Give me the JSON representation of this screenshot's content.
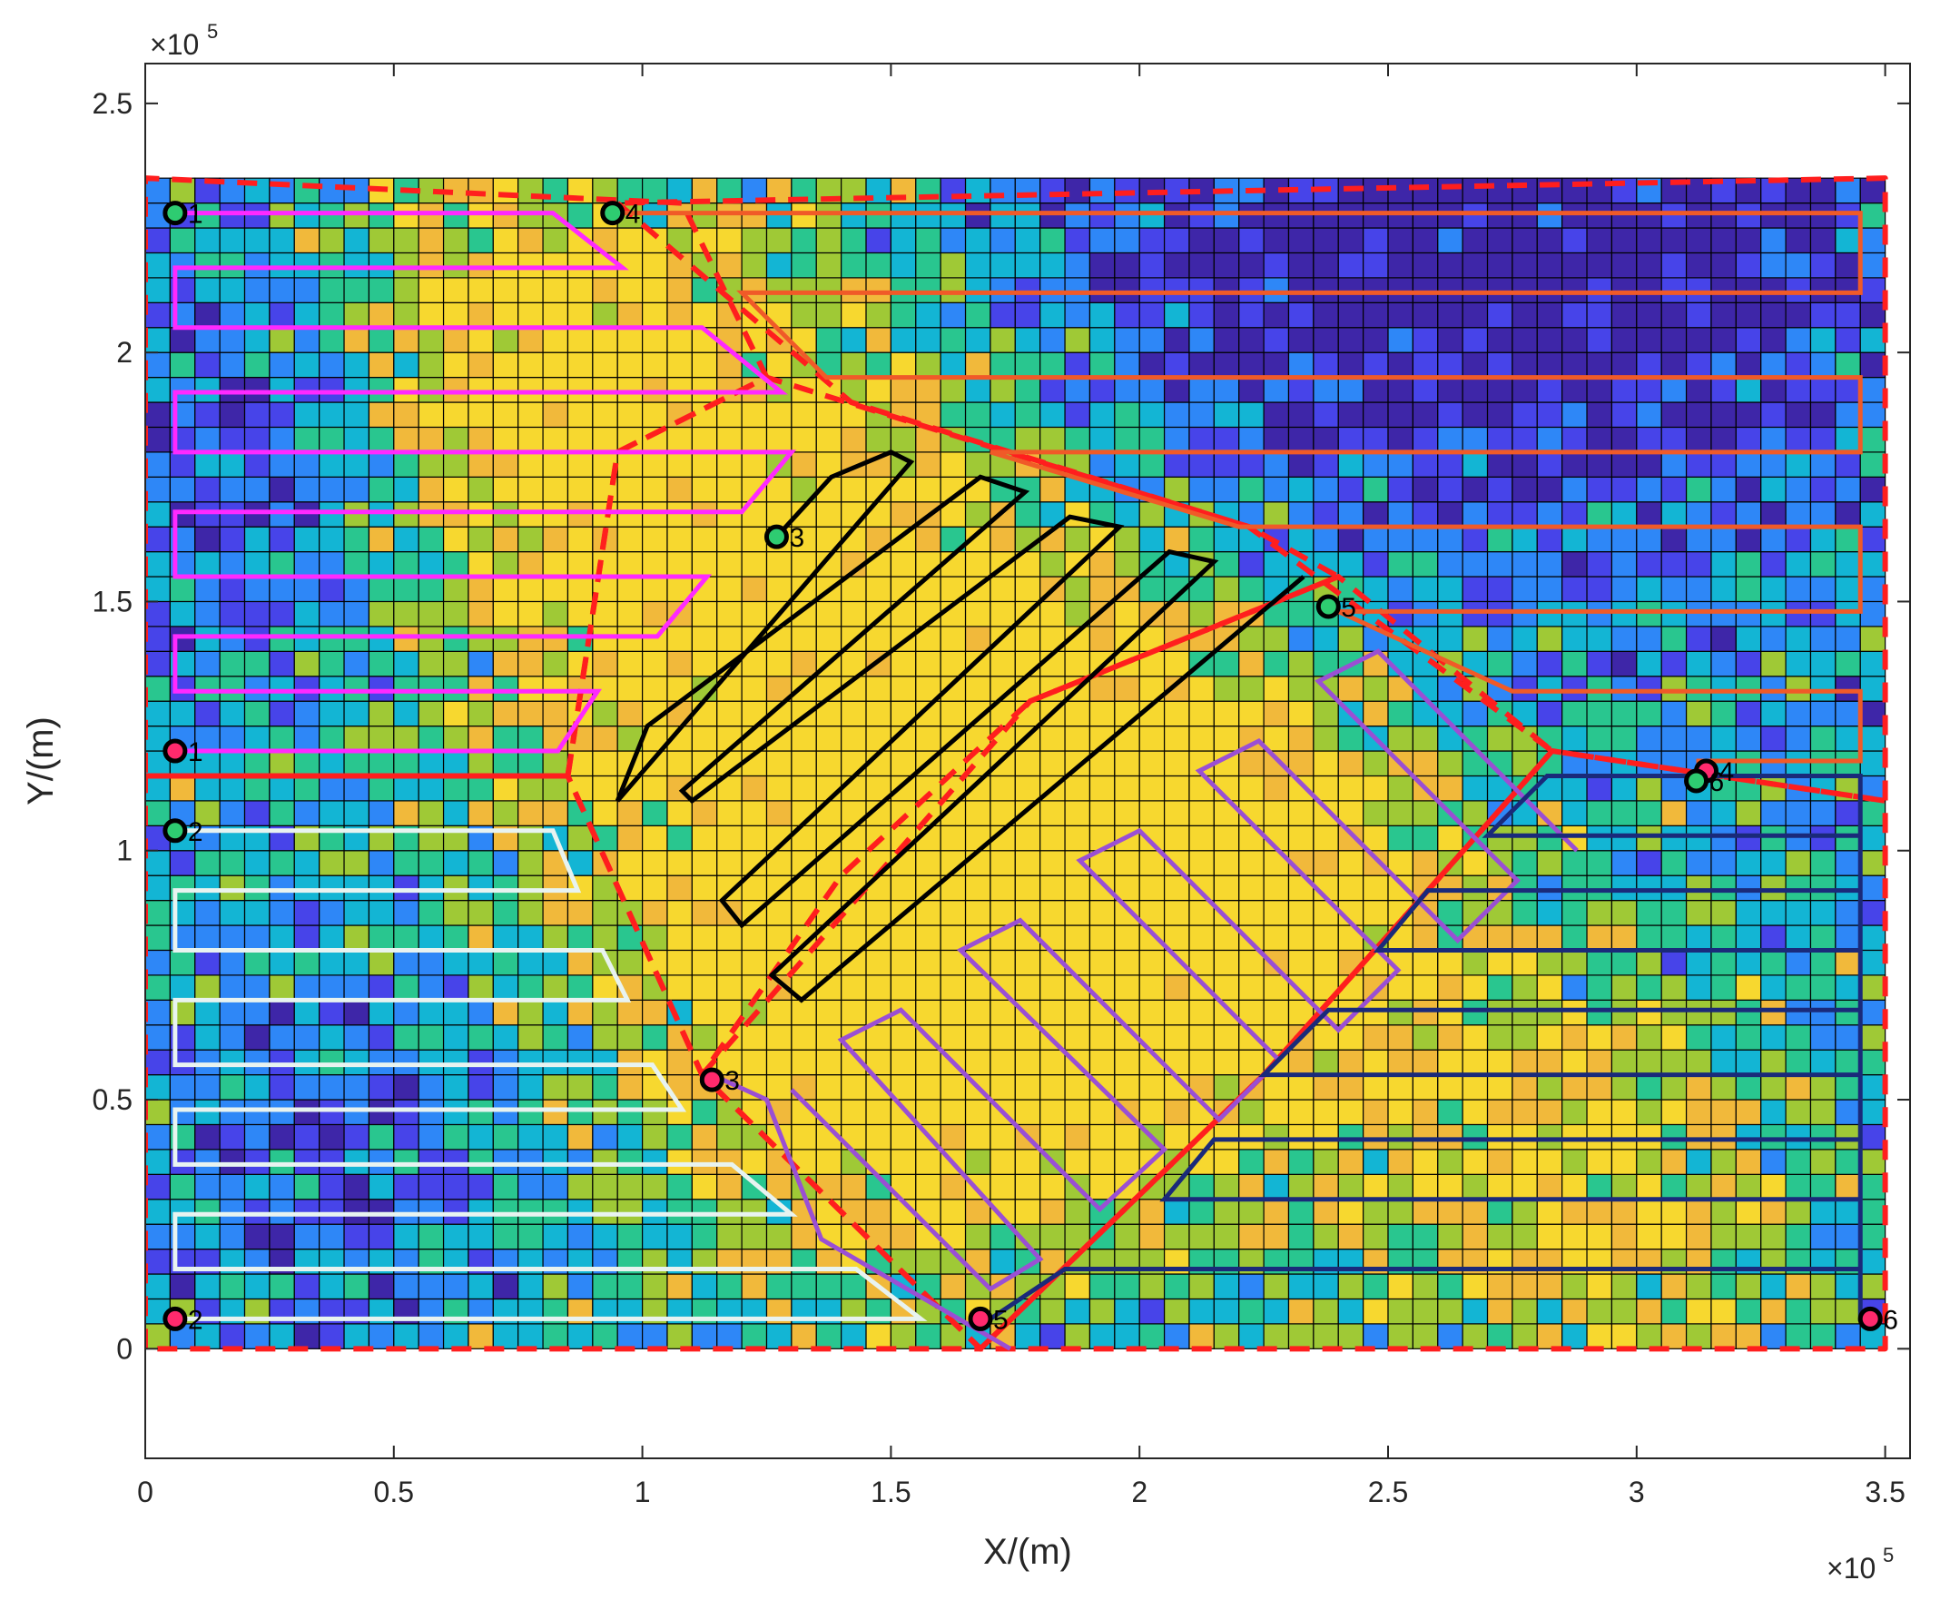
{
  "chart_data": {
    "type": "heatmap",
    "title": "",
    "xlabel": "X/(m)",
    "ylabel": "Y/(m)",
    "x_multiplier": "×10",
    "x_multiplier_exp": "5",
    "y_multiplier": "×10",
    "y_multiplier_exp": "5",
    "xlim": [
      0,
      355000
    ],
    "ylim": [
      -22000,
      258000
    ],
    "x_ticks": [
      0,
      50000,
      100000,
      150000,
      200000,
      250000,
      300000,
      350000
    ],
    "y_ticks": [
      0,
      50000,
      100000,
      150000,
      200000,
      250000
    ],
    "x_tick_labels": [
      "0",
      "0.5",
      "1",
      "1.5",
      "2",
      "2.5",
      "3",
      "3.5"
    ],
    "y_tick_labels": [
      "0",
      "0.5",
      "1",
      "1.5",
      "2",
      "2.5"
    ],
    "grid": {
      "x_range": [
        0,
        350000
      ],
      "y_range": [
        0,
        235000
      ],
      "cell_size": 5000,
      "colormap": [
        "#3e26a8",
        "#4744e9",
        "#2e87f7",
        "#13b5d4",
        "#29c68f",
        "#9fc936",
        "#f1b93b",
        "#f7d82f"
      ]
    },
    "regions_boundary_color": "#ff1e1e",
    "regions": [
      {
        "vertices": [
          [
            0,
            115000
          ],
          [
            85000,
            115000
          ],
          [
            95000,
            180000
          ],
          [
            125000,
            195000
          ],
          [
            108000,
            230000
          ],
          [
            0,
            235000
          ]
        ]
      },
      {
        "vertices": [
          [
            95000,
            230000
          ],
          [
            142000,
            190000
          ],
          [
            222000,
            165000
          ],
          [
            283000,
            120000
          ],
          [
            350000,
            110000
          ],
          [
            350000,
            235000
          ]
        ]
      },
      {
        "vertices": [
          [
            85000,
            115000
          ],
          [
            95000,
            180000
          ],
          [
            125000,
            195000
          ],
          [
            222000,
            165000
          ],
          [
            240000,
            155000
          ],
          [
            178000,
            130000
          ],
          [
            140000,
            95000
          ],
          [
            112000,
            55000
          ]
        ]
      },
      {
        "vertices": [
          [
            112000,
            55000
          ],
          [
            178000,
            130000
          ],
          [
            240000,
            155000
          ],
          [
            283000,
            120000
          ],
          [
            225000,
            55000
          ],
          [
            168000,
            0
          ]
        ]
      },
      {
        "vertices": [
          [
            0,
            0
          ],
          [
            0,
            115000
          ],
          [
            85000,
            115000
          ],
          [
            112000,
            55000
          ],
          [
            168000,
            0
          ]
        ]
      },
      {
        "vertices": [
          [
            168000,
            0
          ],
          [
            225000,
            55000
          ],
          [
            283000,
            120000
          ],
          [
            350000,
            110000
          ],
          [
            350000,
            0
          ]
        ]
      }
    ],
    "paths": [
      {
        "color": "#ff29ff",
        "points": [
          [
            6000,
            228000
          ],
          [
            82000,
            228000
          ],
          [
            96000,
            217000
          ],
          [
            6000,
            217000
          ],
          [
            6000,
            205000
          ],
          [
            112000,
            205000
          ],
          [
            128000,
            192000
          ],
          [
            6000,
            192000
          ],
          [
            6000,
            180000
          ],
          [
            130000,
            180000
          ],
          [
            120000,
            168000
          ],
          [
            6000,
            168000
          ],
          [
            6000,
            155000
          ],
          [
            113000,
            155000
          ],
          [
            103000,
            143000
          ],
          [
            6000,
            143000
          ],
          [
            6000,
            132000
          ],
          [
            91000,
            132000
          ],
          [
            83000,
            120000
          ],
          [
            6000,
            120000
          ]
        ]
      },
      {
        "color": "#f05a28",
        "points": [
          [
            94000,
            228000
          ],
          [
            345000,
            228000
          ],
          [
            345000,
            212000
          ],
          [
            120000,
            212000
          ],
          [
            137000,
            195000
          ],
          [
            345000,
            195000
          ],
          [
            345000,
            180000
          ],
          [
            170000,
            180000
          ],
          [
            220000,
            165000
          ],
          [
            345000,
            165000
          ],
          [
            345000,
            148000
          ],
          [
            240000,
            148000
          ],
          [
            275000,
            132000
          ],
          [
            345000,
            132000
          ],
          [
            345000,
            118000
          ],
          [
            312000,
            118000
          ]
        ]
      },
      {
        "color": "#000000",
        "points": [
          [
            127000,
            163000
          ],
          [
            138000,
            175000
          ],
          [
            150000,
            180000
          ],
          [
            154000,
            178000
          ],
          [
            95000,
            110000
          ],
          [
            101000,
            125000
          ],
          [
            168000,
            175000
          ],
          [
            177000,
            172000
          ],
          [
            108000,
            112000
          ],
          [
            110000,
            110000
          ],
          [
            186000,
            167000
          ],
          [
            196000,
            165000
          ],
          [
            116000,
            90000
          ],
          [
            120000,
            85000
          ],
          [
            206000,
            160000
          ],
          [
            215000,
            158000
          ],
          [
            126000,
            75000
          ],
          [
            132000,
            70000
          ],
          [
            233000,
            155000
          ]
        ]
      },
      {
        "color": "#9a4fd4",
        "points": [
          [
            114000,
            55000
          ],
          [
            125000,
            50000
          ],
          [
            136000,
            22000
          ],
          [
            174000,
            0
          ]
        ]
      },
      {
        "color": "#9a4fd4",
        "points": [
          [
            130000,
            52000
          ],
          [
            170000,
            12000
          ],
          [
            180000,
            18000
          ],
          [
            140000,
            62000
          ],
          [
            152000,
            68000
          ],
          [
            192000,
            28000
          ],
          [
            205000,
            40000
          ],
          [
            164000,
            80000
          ],
          [
            176000,
            86000
          ],
          [
            216000,
            46000
          ],
          [
            228000,
            58000
          ],
          [
            188000,
            98000
          ],
          [
            200000,
            104000
          ],
          [
            240000,
            64000
          ],
          [
            252000,
            76000
          ],
          [
            212000,
            116000
          ],
          [
            224000,
            122000
          ],
          [
            264000,
            82000
          ],
          [
            276000,
            94000
          ],
          [
            236000,
            134000
          ],
          [
            248000,
            140000
          ],
          [
            288000,
            100000
          ]
        ]
      },
      {
        "color": "#e8f3f0",
        "points": [
          [
            6000,
            104000
          ],
          [
            82000,
            104000
          ],
          [
            87000,
            92000
          ],
          [
            6000,
            92000
          ],
          [
            6000,
            80000
          ],
          [
            92000,
            80000
          ],
          [
            97000,
            70000
          ],
          [
            6000,
            70000
          ],
          [
            6000,
            57000
          ],
          [
            102000,
            57000
          ],
          [
            108000,
            48000
          ],
          [
            6000,
            48000
          ],
          [
            6000,
            37000
          ],
          [
            118000,
            37000
          ],
          [
            130000,
            27000
          ],
          [
            6000,
            27000
          ],
          [
            6000,
            16000
          ],
          [
            143000,
            16000
          ],
          [
            156000,
            6000
          ],
          [
            6000,
            6000
          ]
        ]
      },
      {
        "color": "#1a2a7a",
        "points": [
          [
            170000,
            6000
          ],
          [
            185000,
            16000
          ],
          [
            345000,
            16000
          ],
          [
            345000,
            30000
          ],
          [
            205000,
            30000
          ],
          [
            215000,
            42000
          ],
          [
            345000,
            42000
          ],
          [
            345000,
            55000
          ],
          [
            225000,
            55000
          ],
          [
            238000,
            68000
          ],
          [
            345000,
            68000
          ],
          [
            345000,
            80000
          ],
          [
            248000,
            80000
          ],
          [
            258000,
            92000
          ],
          [
            345000,
            92000
          ],
          [
            345000,
            103000
          ],
          [
            270000,
            103000
          ],
          [
            282000,
            115000
          ],
          [
            345000,
            115000
          ],
          [
            345000,
            104000
          ],
          [
            345000,
            6000
          ],
          [
            347000,
            6000
          ]
        ]
      }
    ],
    "points": [
      {
        "x": 6000,
        "y": 228000,
        "label": "1",
        "fill": "#2ecc71"
      },
      {
        "x": 6000,
        "y": 120000,
        "label": "1",
        "fill": "#ff2a6d"
      },
      {
        "x": 6000,
        "y": 104000,
        "label": "2",
        "fill": "#2ecc71"
      },
      {
        "x": 6000,
        "y": 6000,
        "label": "2",
        "fill": "#ff2a6d"
      },
      {
        "x": 127000,
        "y": 163000,
        "label": "3",
        "fill": "#2ecc71"
      },
      {
        "x": 114000,
        "y": 54000,
        "label": "3",
        "fill": "#ff2a6d"
      },
      {
        "x": 94000,
        "y": 228000,
        "label": "4",
        "fill": "#2ecc71"
      },
      {
        "x": 314000,
        "y": 116000,
        "label": "4",
        "fill": "#ff2a6d"
      },
      {
        "x": 238000,
        "y": 149000,
        "label": "5",
        "fill": "#2ecc71"
      },
      {
        "x": 168000,
        "y": 6000,
        "label": "5",
        "fill": "#ff2a6d"
      },
      {
        "x": 312000,
        "y": 114000,
        "label": "6",
        "fill": "#2ecc71"
      },
      {
        "x": 347000,
        "y": 6000,
        "label": "6",
        "fill": "#ff2a6d"
      }
    ]
  }
}
